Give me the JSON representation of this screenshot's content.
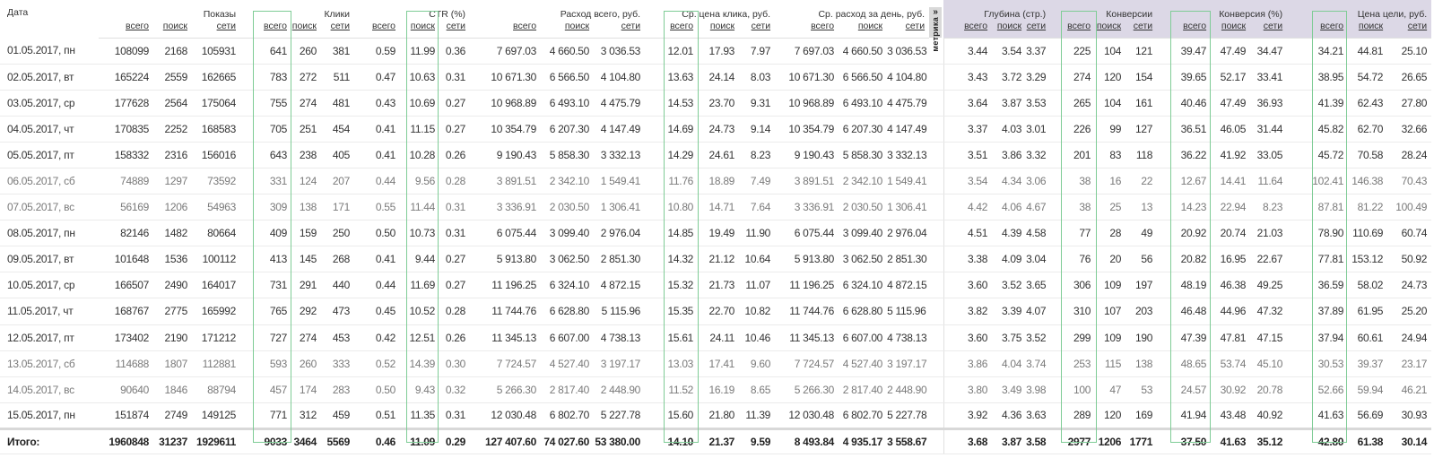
{
  "header": {
    "date": "Дата",
    "groups": [
      "Показы",
      "Клики",
      "CTR (%)",
      "Расход всего, руб.",
      "Ср. цена клика, руб.",
      "Ср. расход за день, руб.",
      "Глубина (стр.)",
      "Конверсии",
      "Конверсия (%)",
      "Цена цели, руб."
    ],
    "sub": {
      "total": "всего",
      "search": "поиск",
      "network": "сети"
    },
    "metrika_tab": {
      "arrow": "»",
      "label": "метрика"
    }
  },
  "colors": {
    "highlight_box": "#7fcc96",
    "goal_header_bg": "#dcd8e6",
    "weekend_text": "#7a7a7a"
  },
  "rows": [
    {
      "weekend": false,
      "cells": [
        "01.05.2017, пн",
        "108099",
        "2168",
        "105931",
        "641",
        "260",
        "381",
        "0.59",
        "11.99",
        "0.36",
        "7 697.03",
        "4 660.50",
        "3 036.53",
        "12.01",
        "17.93",
        "7.97",
        "7 697.03",
        "4 660.50",
        "3 036.53",
        "3.44",
        "3.54",
        "3.37",
        "225",
        "104",
        "121",
        "39.47",
        "47.49",
        "34.47",
        "34.21",
        "44.81",
        "25.10"
      ]
    },
    {
      "weekend": false,
      "cells": [
        "02.05.2017, вт",
        "165224",
        "2559",
        "162665",
        "783",
        "272",
        "511",
        "0.47",
        "10.63",
        "0.31",
        "10 671.30",
        "6 566.50",
        "4 104.80",
        "13.63",
        "24.14",
        "8.03",
        "10 671.30",
        "6 566.50",
        "4 104.80",
        "3.43",
        "3.72",
        "3.29",
        "274",
        "120",
        "154",
        "39.65",
        "52.17",
        "33.41",
        "38.95",
        "54.72",
        "26.65"
      ]
    },
    {
      "weekend": false,
      "cells": [
        "03.05.2017, ср",
        "177628",
        "2564",
        "175064",
        "755",
        "274",
        "481",
        "0.43",
        "10.69",
        "0.27",
        "10 968.89",
        "6 493.10",
        "4 475.79",
        "14.53",
        "23.70",
        "9.31",
        "10 968.89",
        "6 493.10",
        "4 475.79",
        "3.64",
        "3.87",
        "3.53",
        "265",
        "104",
        "161",
        "40.46",
        "47.49",
        "36.93",
        "41.39",
        "62.43",
        "27.80"
      ]
    },
    {
      "weekend": false,
      "cells": [
        "04.05.2017, чт",
        "170835",
        "2252",
        "168583",
        "705",
        "251",
        "454",
        "0.41",
        "11.15",
        "0.27",
        "10 354.79",
        "6 207.30",
        "4 147.49",
        "14.69",
        "24.73",
        "9.14",
        "10 354.79",
        "6 207.30",
        "4 147.49",
        "3.37",
        "4.03",
        "3.01",
        "226",
        "99",
        "127",
        "36.51",
        "46.05",
        "31.44",
        "45.82",
        "62.70",
        "32.66"
      ]
    },
    {
      "weekend": false,
      "cells": [
        "05.05.2017, пт",
        "158332",
        "2316",
        "156016",
        "643",
        "238",
        "405",
        "0.41",
        "10.28",
        "0.26",
        "9 190.43",
        "5 858.30",
        "3 332.13",
        "14.29",
        "24.61",
        "8.23",
        "9 190.43",
        "5 858.30",
        "3 332.13",
        "3.51",
        "3.86",
        "3.32",
        "201",
        "83",
        "118",
        "36.22",
        "41.92",
        "33.05",
        "45.72",
        "70.58",
        "28.24"
      ]
    },
    {
      "weekend": true,
      "cells": [
        "06.05.2017, сб",
        "74889",
        "1297",
        "73592",
        "331",
        "124",
        "207",
        "0.44",
        "9.56",
        "0.28",
        "3 891.51",
        "2 342.10",
        "1 549.41",
        "11.76",
        "18.89",
        "7.49",
        "3 891.51",
        "2 342.10",
        "1 549.41",
        "3.54",
        "4.34",
        "3.06",
        "38",
        "16",
        "22",
        "12.67",
        "14.41",
        "11.64",
        "102.41",
        "146.38",
        "70.43"
      ]
    },
    {
      "weekend": true,
      "cells": [
        "07.05.2017, вс",
        "56169",
        "1206",
        "54963",
        "309",
        "138",
        "171",
        "0.55",
        "11.44",
        "0.31",
        "3 336.91",
        "2 030.50",
        "1 306.41",
        "10.80",
        "14.71",
        "7.64",
        "3 336.91",
        "2 030.50",
        "1 306.41",
        "4.42",
        "4.06",
        "4.67",
        "38",
        "25",
        "13",
        "14.23",
        "22.94",
        "8.23",
        "87.81",
        "81.22",
        "100.49"
      ]
    },
    {
      "weekend": false,
      "cells": [
        "08.05.2017, пн",
        "82146",
        "1482",
        "80664",
        "409",
        "159",
        "250",
        "0.50",
        "10.73",
        "0.31",
        "6 075.44",
        "3 099.40",
        "2 976.04",
        "14.85",
        "19.49",
        "11.90",
        "6 075.44",
        "3 099.40",
        "2 976.04",
        "4.51",
        "4.39",
        "4.58",
        "77",
        "28",
        "49",
        "20.92",
        "20.74",
        "21.03",
        "78.90",
        "110.69",
        "60.74"
      ]
    },
    {
      "weekend": false,
      "cells": [
        "09.05.2017, вт",
        "101648",
        "1536",
        "100112",
        "413",
        "145",
        "268",
        "0.41",
        "9.44",
        "0.27",
        "5 913.80",
        "3 062.50",
        "2 851.30",
        "14.32",
        "21.12",
        "10.64",
        "5 913.80",
        "3 062.50",
        "2 851.30",
        "3.38",
        "4.09",
        "3.04",
        "76",
        "20",
        "56",
        "20.82",
        "16.95",
        "22.67",
        "77.81",
        "153.12",
        "50.92"
      ]
    },
    {
      "weekend": false,
      "cells": [
        "10.05.2017, ср",
        "166507",
        "2490",
        "164017",
        "731",
        "291",
        "440",
        "0.44",
        "11.69",
        "0.27",
        "11 196.25",
        "6 324.10",
        "4 872.15",
        "15.32",
        "21.73",
        "11.07",
        "11 196.25",
        "6 324.10",
        "4 872.15",
        "3.60",
        "3.52",
        "3.65",
        "306",
        "109",
        "197",
        "48.19",
        "46.38",
        "49.25",
        "36.59",
        "58.02",
        "24.73"
      ]
    },
    {
      "weekend": false,
      "cells": [
        "11.05.2017, чт",
        "168767",
        "2775",
        "165992",
        "765",
        "292",
        "473",
        "0.45",
        "10.52",
        "0.28",
        "11 744.76",
        "6 628.80",
        "5 115.96",
        "15.35",
        "22.70",
        "10.82",
        "11 744.76",
        "6 628.80",
        "5 115.96",
        "3.82",
        "3.39",
        "4.07",
        "310",
        "107",
        "203",
        "46.48",
        "44.96",
        "47.32",
        "37.89",
        "61.95",
        "25.20"
      ]
    },
    {
      "weekend": false,
      "cells": [
        "12.05.2017, пт",
        "173402",
        "2190",
        "171212",
        "727",
        "274",
        "453",
        "0.42",
        "12.51",
        "0.26",
        "11 345.13",
        "6 607.00",
        "4 738.13",
        "15.61",
        "24.11",
        "10.46",
        "11 345.13",
        "6 607.00",
        "4 738.13",
        "3.60",
        "3.75",
        "3.52",
        "299",
        "109",
        "190",
        "47.39",
        "47.81",
        "47.15",
        "37.94",
        "60.61",
        "24.94"
      ]
    },
    {
      "weekend": true,
      "cells": [
        "13.05.2017, сб",
        "114688",
        "1807",
        "112881",
        "593",
        "260",
        "333",
        "0.52",
        "14.39",
        "0.30",
        "7 724.57",
        "4 527.40",
        "3 197.17",
        "13.03",
        "17.41",
        "9.60",
        "7 724.57",
        "4 527.40",
        "3 197.17",
        "3.86",
        "4.04",
        "3.74",
        "253",
        "115",
        "138",
        "48.65",
        "53.74",
        "45.10",
        "30.53",
        "39.37",
        "23.17"
      ]
    },
    {
      "weekend": true,
      "cells": [
        "14.05.2017, вс",
        "90640",
        "1846",
        "88794",
        "457",
        "174",
        "283",
        "0.50",
        "9.43",
        "0.32",
        "5 266.30",
        "2 817.40",
        "2 448.90",
        "11.52",
        "16.19",
        "8.65",
        "5 266.30",
        "2 817.40",
        "2 448.90",
        "3.80",
        "3.49",
        "3.98",
        "100",
        "47",
        "53",
        "24.57",
        "30.92",
        "20.78",
        "52.66",
        "59.94",
        "46.21"
      ]
    },
    {
      "weekend": false,
      "cells": [
        "15.05.2017, пн",
        "151874",
        "2749",
        "149125",
        "771",
        "312",
        "459",
        "0.51",
        "11.35",
        "0.31",
        "12 030.48",
        "6 802.70",
        "5 227.78",
        "15.60",
        "21.80",
        "11.39",
        "12 030.48",
        "6 802.70",
        "5 227.78",
        "3.92",
        "4.36",
        "3.63",
        "289",
        "120",
        "169",
        "41.94",
        "43.48",
        "40.92",
        "41.63",
        "56.69",
        "30.93"
      ]
    }
  ],
  "total": [
    "Итого:",
    "1960848",
    "31237",
    "1929611",
    "9033",
    "3464",
    "5569",
    "0.46",
    "11.09",
    "0.29",
    "127 407.60",
    "74 027.60",
    "53 380.00",
    "14.10",
    "21.37",
    "9.59",
    "8 493.84",
    "4 935.17",
    "3 558.67",
    "3.68",
    "3.87",
    "3.58",
    "2977",
    "1206",
    "1771",
    "37.50",
    "41.63",
    "35.12",
    "42.80",
    "61.38",
    "30.14"
  ]
}
